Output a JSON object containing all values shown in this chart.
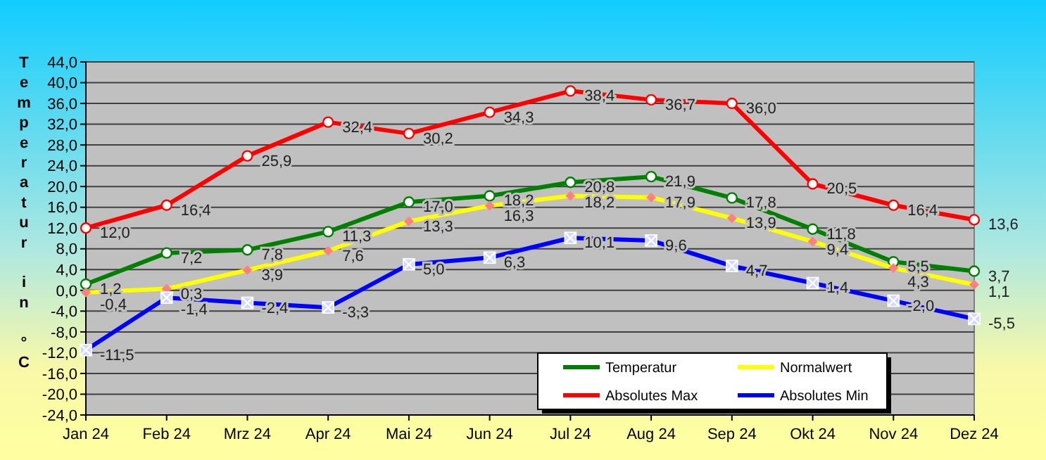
{
  "chart_data": {
    "type": "line",
    "ylabel": "Temperatur in °C",
    "categories": [
      "Jan 24",
      "Feb 24",
      "Mrz 24",
      "Apr 24",
      "Mai 24",
      "Jun 24",
      "Jul 24",
      "Aug 24",
      "Sep 24",
      "Okt 24",
      "Nov 24",
      "Dez 24"
    ],
    "series": [
      {
        "name": "Temperatur",
        "color": "#008000",
        "marker": "circle",
        "values": [
          1.2,
          7.2,
          7.8,
          11.3,
          17.0,
          18.2,
          20.8,
          21.9,
          17.8,
          11.8,
          5.5,
          3.7
        ],
        "value_labels": [
          "1,2",
          "7,2",
          "7,8",
          "11,3",
          "17,0",
          "18,2",
          "20,8",
          "21,9",
          "17,8",
          "11,8",
          "5,5",
          "3,7"
        ]
      },
      {
        "name": "Normalwert",
        "color": "#ffff00",
        "marker": "diamond",
        "values": [
          -0.4,
          0.3,
          3.9,
          7.6,
          13.3,
          16.3,
          18.2,
          17.9,
          13.9,
          9.4,
          4.3,
          1.1
        ],
        "value_labels": [
          "-0,4",
          "0,3",
          "3,9",
          "7,6",
          "13,3",
          "16,3",
          "18,2",
          "17,9",
          "13,9",
          "9,4",
          "4,3",
          "1,1"
        ]
      },
      {
        "name": "Absolutes Max",
        "color": "#ff0000",
        "marker": "circle",
        "values": [
          12.0,
          16.4,
          25.9,
          32.4,
          30.2,
          34.3,
          38.4,
          36.7,
          36.0,
          20.5,
          16.4,
          13.6
        ],
        "value_labels": [
          "12,0",
          "16,4",
          "25,9",
          "32,4",
          "30,2",
          "34,3",
          "38,4",
          "36,7",
          "36,0",
          "20,5",
          "16,4",
          "13,6"
        ]
      },
      {
        "name": "Absolutes Min",
        "color": "#0000ff",
        "marker": "square",
        "values": [
          -11.5,
          -1.4,
          -2.4,
          -3.3,
          5.0,
          6.3,
          10.1,
          9.6,
          4.7,
          1.4,
          -2.0,
          -5.5
        ],
        "value_labels": [
          "-11,5",
          "-1,4",
          "-2,4",
          "-3,3",
          "5,0",
          "6,3",
          "10,1",
          "9,6",
          "4,7",
          "1,4",
          "-2,0",
          "-5,5"
        ]
      }
    ],
    "ylim": [
      -24,
      44
    ],
    "yticks": [
      {
        "value": -24,
        "label": "-24,0"
      },
      {
        "value": -20,
        "label": "-20,0"
      },
      {
        "value": -16,
        "label": "-16,0"
      },
      {
        "value": -12,
        "label": "-12,0"
      },
      {
        "value": -8,
        "label": "-8,0"
      },
      {
        "value": -4,
        "label": "-4,0"
      },
      {
        "value": 0,
        "label": "0,0"
      },
      {
        "value": 4,
        "label": "4,0"
      },
      {
        "value": 8,
        "label": "8,0"
      },
      {
        "value": 12,
        "label": "12,0"
      },
      {
        "value": 16,
        "label": "16,0"
      },
      {
        "value": 20,
        "label": "20,0"
      },
      {
        "value": 24,
        "label": "24,0"
      },
      {
        "value": 28,
        "label": "28,0"
      },
      {
        "value": 32,
        "label": "32,0"
      },
      {
        "value": 36,
        "label": "36,0"
      },
      {
        "value": 40,
        "label": "40,0"
      },
      {
        "value": 44,
        "label": "44,0"
      }
    ],
    "grid": "y",
    "legend": "bottom right",
    "line_style": "solid"
  }
}
